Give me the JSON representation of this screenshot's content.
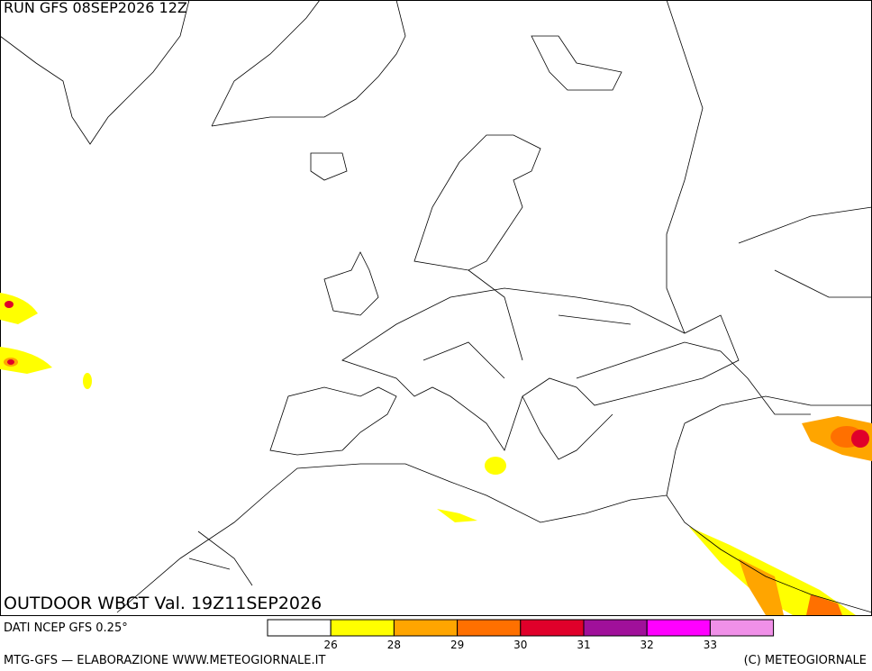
{
  "header": {
    "run": "RUN GFS 08SEP2026 12Z"
  },
  "map": {
    "title": "OUTDOOR WBGT Val. 19Z11SEP2026"
  },
  "legend": {
    "source": "DATI NCEP GFS 0.25°",
    "colors": [
      "#ffffff",
      "#ffff00",
      "#ffa500",
      "#ff7000",
      "#e0002a",
      "#a0109a",
      "#ff00ff",
      "#f090e8"
    ],
    "ticks": [
      26,
      28,
      29,
      30,
      31,
      32,
      33
    ]
  },
  "footer": {
    "left": "MTG-GFS — ELABORAZIONE WWW.METEOGIORNALE.IT",
    "right": "(C) METEOGIORNALE"
  }
}
